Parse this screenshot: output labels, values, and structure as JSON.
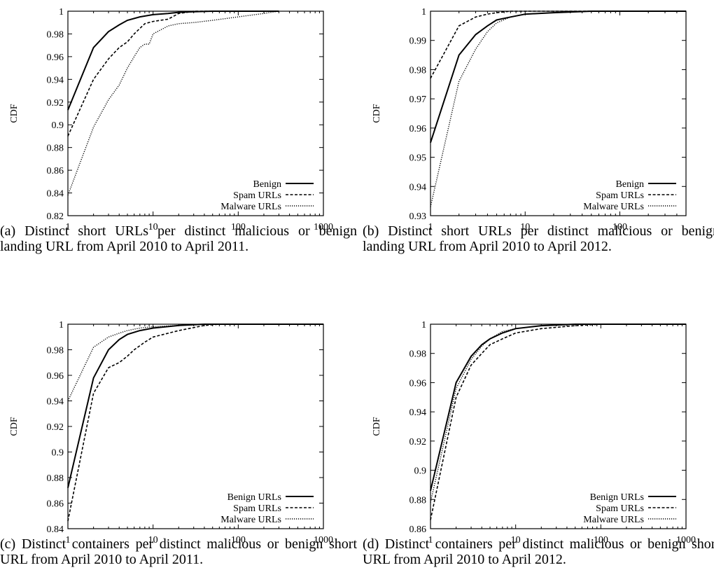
{
  "chart_data": [
    {
      "id": "a",
      "type": "line",
      "x_scale": "log",
      "xlim": [
        1,
        1000
      ],
      "ylim": [
        0.82,
        1
      ],
      "xticks": [
        "1",
        "10",
        "100",
        "1000"
      ],
      "yticks": [
        "0.82",
        "0.84",
        "0.86",
        "0.88",
        "0.9",
        "0.92",
        "0.94",
        "0.96",
        "0.98",
        "1"
      ],
      "ylabel": "CDF",
      "legend_position": "bottom-right",
      "caption": "(a) Distinct short URLs per distinct malicious or benign landing URL from April 2010 to April 2011.",
      "series": [
        {
          "name": "Benign",
          "style": "solid",
          "x": [
            1,
            2,
            3,
            4,
            5,
            7,
            10,
            15,
            20,
            30,
            50,
            100,
            300
          ],
          "y": [
            0.913,
            0.968,
            0.982,
            0.988,
            0.992,
            0.995,
            0.997,
            0.998,
            0.999,
            0.9995,
            1.0,
            1.0,
            1.0
          ]
        },
        {
          "name": "Spam URLs",
          "style": "dashed",
          "x": [
            1,
            2,
            3,
            4,
            5,
            6,
            8,
            10,
            15,
            20,
            25,
            30,
            50,
            100,
            300
          ],
          "y": [
            0.89,
            0.94,
            0.958,
            0.968,
            0.973,
            0.98,
            0.989,
            0.991,
            0.993,
            0.998,
            0.999,
            1.0,
            1.0,
            1.0,
            1.0
          ]
        },
        {
          "name": "Malware URLs",
          "style": "dotted",
          "x": [
            1,
            2,
            3,
            4,
            5,
            6,
            7,
            8,
            9,
            10,
            15,
            20,
            30,
            50,
            100,
            200,
            300
          ],
          "y": [
            0.838,
            0.898,
            0.922,
            0.935,
            0.95,
            0.96,
            0.968,
            0.971,
            0.971,
            0.98,
            0.987,
            0.989,
            0.99,
            0.992,
            0.995,
            0.998,
            1.0
          ]
        }
      ]
    },
    {
      "id": "b",
      "type": "line",
      "x_scale": "log",
      "xlim": [
        1,
        500
      ],
      "ylim": [
        0.93,
        1
      ],
      "xticks": [
        "1",
        "10",
        "100"
      ],
      "yticks": [
        "0.93",
        "0.94",
        "0.95",
        "0.96",
        "0.97",
        "0.98",
        "0.99",
        "1"
      ],
      "ylabel": "CDF",
      "legend_position": "bottom-right",
      "caption": "(b) Distinct short URLs per distinct malicious or benign landing URL from April 2010 to April 2012.",
      "series": [
        {
          "name": "Benign",
          "style": "solid",
          "x": [
            1,
            2,
            3,
            4,
            5,
            7,
            10,
            20,
            50,
            100,
            500
          ],
          "y": [
            0.955,
            0.985,
            0.992,
            0.995,
            0.997,
            0.998,
            0.999,
            0.9995,
            1.0,
            1.0,
            1.0
          ]
        },
        {
          "name": "Spam URLs",
          "style": "dashed",
          "x": [
            1,
            2,
            3,
            4,
            5,
            7,
            10,
            20,
            50,
            100,
            500
          ],
          "y": [
            0.977,
            0.995,
            0.998,
            0.999,
            0.9995,
            1.0,
            1.0,
            1.0,
            1.0,
            1.0,
            1.0
          ]
        },
        {
          "name": "Malware URLs",
          "style": "dotted",
          "x": [
            1,
            2,
            3,
            4,
            5,
            7,
            10,
            20,
            50,
            100,
            500
          ],
          "y": [
            0.933,
            0.976,
            0.987,
            0.993,
            0.996,
            0.998,
            0.999,
            0.9995,
            1.0,
            1.0,
            1.0
          ]
        }
      ]
    },
    {
      "id": "c",
      "type": "line",
      "x_scale": "log",
      "xlim": [
        1,
        1000
      ],
      "ylim": [
        0.84,
        1
      ],
      "xticks": [
        "1",
        "10",
        "100",
        "1000"
      ],
      "yticks": [
        "0.84",
        "0.86",
        "0.88",
        "0.9",
        "0.92",
        "0.94",
        "0.96",
        "0.98",
        "1"
      ],
      "ylabel": "CDF",
      "legend_position": "bottom-right",
      "caption": "(c) Distinct containers per distinct malicious or benign short URL from April 2010 to April 2011.",
      "series": [
        {
          "name": "Benign URLs",
          "style": "solid",
          "x": [
            1,
            2,
            3,
            4,
            5,
            7,
            10,
            20,
            40,
            60,
            1000
          ],
          "y": [
            0.872,
            0.958,
            0.98,
            0.988,
            0.992,
            0.995,
            0.997,
            0.999,
            1.0,
            1.0,
            1.0
          ]
        },
        {
          "name": "Spam URLs",
          "style": "dashed",
          "x": [
            1,
            2,
            3,
            4,
            5,
            6,
            8,
            10,
            20,
            40,
            60,
            1000
          ],
          "y": [
            0.846,
            0.946,
            0.966,
            0.97,
            0.975,
            0.98,
            0.986,
            0.99,
            0.995,
            0.999,
            1.0,
            1.0
          ]
        },
        {
          "name": "Malware URLs",
          "style": "dotted",
          "x": [
            1,
            2,
            3,
            4,
            5,
            7,
            10,
            20,
            40,
            60,
            1000
          ],
          "y": [
            0.94,
            0.982,
            0.99,
            0.993,
            0.995,
            0.997,
            0.998,
            0.999,
            1.0,
            1.0,
            1.0
          ]
        }
      ]
    },
    {
      "id": "d",
      "type": "line",
      "x_scale": "log",
      "xlim": [
        1,
        1000
      ],
      "ylim": [
        0.86,
        1
      ],
      "xticks": [
        "1",
        "10",
        "100",
        "1000"
      ],
      "yticks": [
        "0.86",
        "0.88",
        "0.9",
        "0.92",
        "0.94",
        "0.96",
        "0.98",
        "1"
      ],
      "ylabel": "CDF",
      "legend_position": "bottom-right",
      "caption": "(d) Distinct containers per distinct malicious or benign short URL from April 2010 to April 2012.",
      "series": [
        {
          "name": "Benign URLs",
          "style": "solid",
          "x": [
            1,
            2,
            3,
            4,
            5,
            7,
            10,
            20,
            50,
            100,
            1000
          ],
          "y": [
            0.886,
            0.96,
            0.978,
            0.986,
            0.99,
            0.994,
            0.997,
            0.999,
            1.0,
            1.0,
            1.0
          ]
        },
        {
          "name": "Spam URLs",
          "style": "dashed",
          "x": [
            1,
            2,
            3,
            4,
            5,
            7,
            10,
            20,
            50,
            100,
            1000
          ],
          "y": [
            0.866,
            0.95,
            0.972,
            0.98,
            0.986,
            0.99,
            0.994,
            0.997,
            0.999,
            1.0,
            1.0
          ]
        },
        {
          "name": "Malware URLs",
          "style": "dotted",
          "x": [
            1,
            2,
            3,
            4,
            5,
            7,
            10,
            20,
            50,
            100,
            1000
          ],
          "y": [
            0.878,
            0.956,
            0.976,
            0.985,
            0.99,
            0.995,
            0.997,
            0.999,
            1.0,
            1.0,
            1.0
          ]
        }
      ]
    }
  ]
}
